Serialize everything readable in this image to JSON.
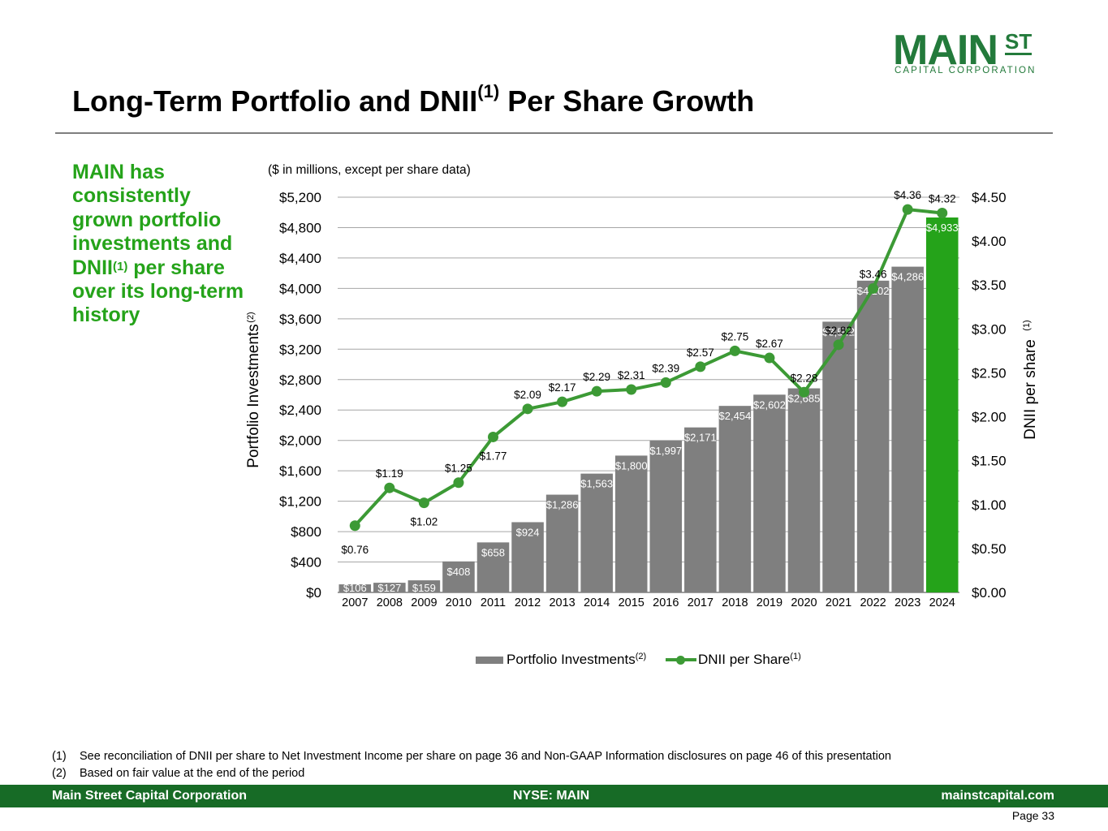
{
  "logo": {
    "main": "MAIN",
    "st": "ST",
    "sub": "CAPITAL CORPORATION"
  },
  "title": {
    "text": "Long-Term Portfolio and DNII",
    "sup": "(1)",
    "suffix": " Per Share Growth"
  },
  "sidebar": {
    "line1": "MAIN has consistently grown portfolio investments and DNII",
    "sup": "(1)",
    "line2": " per share over its long-term history"
  },
  "chart_data": {
    "type": "bar",
    "subtitle": "($ in millions, except per share data)",
    "ylabel_left": "Portfolio Investments",
    "ylabel_left_sup": "(2)",
    "ylabel_right": "DNII per share",
    "ylabel_right_sup": "(1)",
    "ylim_left": [
      0,
      5200
    ],
    "ylim_right": [
      0,
      4.5
    ],
    "left_ticks": [
      "$0",
      "$400",
      "$800",
      "$1,200",
      "$1,600",
      "$2,000",
      "$2,400",
      "$2,800",
      "$3,200",
      "$3,600",
      "$4,000",
      "$4,400",
      "$4,800",
      "$5,200"
    ],
    "right_ticks": [
      "$0.00",
      "$0.50",
      "$1.00",
      "$1.50",
      "$2.00",
      "$2.50",
      "$3.00",
      "$3.50",
      "$4.00",
      "$4.50"
    ],
    "categories": [
      "2007",
      "2008",
      "2009",
      "2010",
      "2011",
      "2012",
      "2013",
      "2014",
      "2015",
      "2016",
      "2017",
      "2018",
      "2019",
      "2020",
      "2021",
      "2022",
      "2023",
      "2024"
    ],
    "grid": true,
    "series": [
      {
        "name": "Portfolio Investments",
        "name_sup": "(2)",
        "kind": "bar",
        "axis": "left",
        "values": [
          106,
          127,
          159,
          408,
          658,
          924,
          1286,
          1563,
          1800,
          1997,
          2171,
          2454,
          2602,
          2685,
          3562,
          4102,
          4286,
          4933
        ],
        "labels": [
          "$106",
          "$127",
          "$159",
          "$408",
          "$658",
          "$924",
          "$1,286",
          "$1,563",
          "$1,800",
          "$1,997",
          "$2,171",
          "$2,454",
          "$2,602",
          "$2,685",
          "$3,562",
          "$4,102",
          "$4,286",
          "$4,933"
        ],
        "color": "#7f7f7f",
        "highlight_color": "#25a31a"
      },
      {
        "name": "DNII per Share",
        "name_sup": "(1)",
        "kind": "line",
        "axis": "right",
        "values": [
          0.76,
          1.19,
          1.02,
          1.25,
          1.77,
          2.09,
          2.17,
          2.29,
          2.31,
          2.39,
          2.57,
          2.75,
          2.67,
          2.28,
          2.82,
          3.46,
          4.36,
          4.32
        ],
        "labels": [
          "$0.76",
          "$1.19",
          "$1.02",
          "$1.25",
          "$1.77",
          "$2.09",
          "$2.17",
          "$2.29",
          "$2.31",
          "$2.39",
          "$2.57",
          "$2.75",
          "$2.67",
          "$2.28",
          "$2.82",
          "$3.46",
          "$4.36",
          "$4.32"
        ],
        "color": "#3c9a35"
      }
    ]
  },
  "legend": {
    "bar_label": "Portfolio Investments",
    "bar_sup": "(2)",
    "line_label": "DNII per Share",
    "line_sup": "(1)"
  },
  "footnotes": [
    {
      "num": "(1)",
      "text": "See reconciliation of DNII per share to Net Investment Income per share on page 36 and Non-GAAP Information disclosures on page 46 of this presentation"
    },
    {
      "num": "(2)",
      "text": "Based on fair value at the end of the period"
    }
  ],
  "footer": {
    "left": "Main Street Capital Corporation",
    "center": "NYSE: MAIN",
    "right": "mainstcapital.com"
  },
  "page": "Page  33",
  "colors": {
    "brand_green": "#176b26",
    "accent_green": "#25a31a",
    "bar_gray": "#7f7f7f"
  }
}
